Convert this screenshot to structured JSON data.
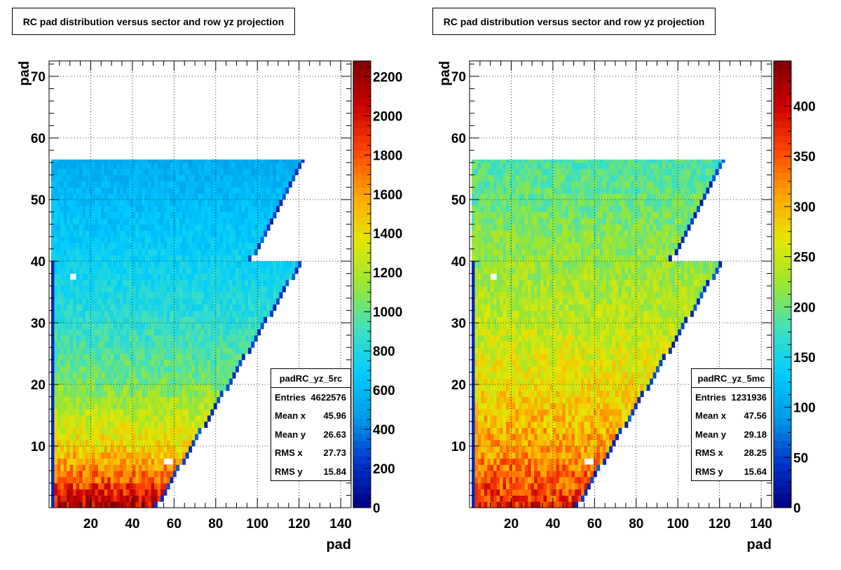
{
  "panels": [
    {
      "title": "RC pad distribution versus sector and row yz projection",
      "xlabel": "pad",
      "ylabel": "pad",
      "stats": {
        "name": "padRC_yz_5rc",
        "rows": [
          {
            "label": "Entries",
            "value": "4622576"
          },
          {
            "label": "Mean x",
            "value": "45.96"
          },
          {
            "label": "Mean y",
            "value": "26.63"
          },
          {
            "label": "RMS x",
            "value": "27.73"
          },
          {
            "label": "RMS y",
            "value": "15.84"
          }
        ]
      }
    },
    {
      "title": "RC pad distribution versus sector and row yz projection",
      "xlabel": "pad",
      "ylabel": "pad",
      "stats": {
        "name": "padRC_yz_5mc",
        "rows": [
          {
            "label": "Entries",
            "value": "1231936"
          },
          {
            "label": "Mean x",
            "value": "47.56"
          },
          {
            "label": "Mean y",
            "value": "29.18"
          },
          {
            "label": "RMS x",
            "value": "28.25"
          },
          {
            "label": "RMS y",
            "value": "15.64"
          }
        ]
      }
    }
  ],
  "chart_data": [
    {
      "type": "heatmap",
      "title": "RC pad distribution versus sector and row yz projection",
      "xlabel": "pad",
      "ylabel": "pad",
      "xlim": [
        0,
        145
      ],
      "ylim": [
        0,
        72.5
      ],
      "xticks": [
        20,
        40,
        60,
        80,
        100,
        120,
        140
      ],
      "yticks": [
        10,
        20,
        30,
        40,
        50,
        60,
        70
      ],
      "grid": true,
      "colorbar": {
        "min": 0,
        "max": 2280,
        "ticks": [
          0,
          200,
          400,
          600,
          800,
          1000,
          1200,
          1400,
          1600,
          1800,
          2000,
          2200
        ]
      },
      "colormap": [
        "#000080",
        "#0033cc",
        "#0099e6",
        "#00ccff",
        "#40e0c0",
        "#99e633",
        "#e6e600",
        "#ffa500",
        "#ff4500",
        "#cc0000",
        "#7f0000"
      ],
      "regions": [
        {
          "rows": [
            0,
            40
          ],
          "pad_min": 1,
          "pad_max_at_row0": 52,
          "pad_max_at_row40": 122
        },
        {
          "rows": [
            40,
            56.5
          ],
          "pad_min": 1,
          "pad_max_at_row40": 97,
          "pad_max_at_row56": 122
        }
      ],
      "value_profile": {
        "row": [
          0,
          5,
          10,
          20,
          30,
          40,
          56
        ],
        "value": [
          2100,
          1700,
          1400,
          1050,
          850,
          720,
          540
        ]
      },
      "note_values": {
        "entries": 4622576,
        "mean_x": 45.96,
        "mean_y": 26.63,
        "rms_x": 27.73,
        "rms_y": 15.84
      }
    },
    {
      "type": "heatmap",
      "title": "RC pad distribution versus sector and row yz projection",
      "xlabel": "pad",
      "ylabel": "pad",
      "xlim": [
        0,
        145
      ],
      "ylim": [
        0,
        72.5
      ],
      "xticks": [
        20,
        40,
        60,
        80,
        100,
        120,
        140
      ],
      "yticks": [
        10,
        20,
        30,
        40,
        50,
        60,
        70
      ],
      "grid": true,
      "colorbar": {
        "min": 0,
        "max": 445,
        "ticks": [
          0,
          50,
          100,
          150,
          200,
          250,
          300,
          350,
          400
        ]
      },
      "colormap": [
        "#000080",
        "#0033cc",
        "#0099e6",
        "#00ccff",
        "#40e0c0",
        "#99e633",
        "#e6e600",
        "#ffa500",
        "#ff4500",
        "#cc0000",
        "#7f0000"
      ],
      "regions": [
        {
          "rows": [
            0,
            40
          ],
          "pad_min": 1,
          "pad_max_at_row0": 52,
          "pad_max_at_row40": 122
        },
        {
          "rows": [
            40,
            56.5
          ],
          "pad_min": 1,
          "pad_max_at_row40": 97,
          "pad_max_at_row56": 122
        }
      ],
      "value_profile": {
        "row": [
          0,
          5,
          10,
          20,
          30,
          40,
          56
        ],
        "value": [
          370,
          340,
          310,
          270,
          240,
          220,
          185
        ]
      },
      "note_values": {
        "entries": 1231936,
        "mean_x": 47.56,
        "mean_y": 29.18,
        "rms_x": 28.25,
        "rms_y": 15.64
      }
    }
  ]
}
